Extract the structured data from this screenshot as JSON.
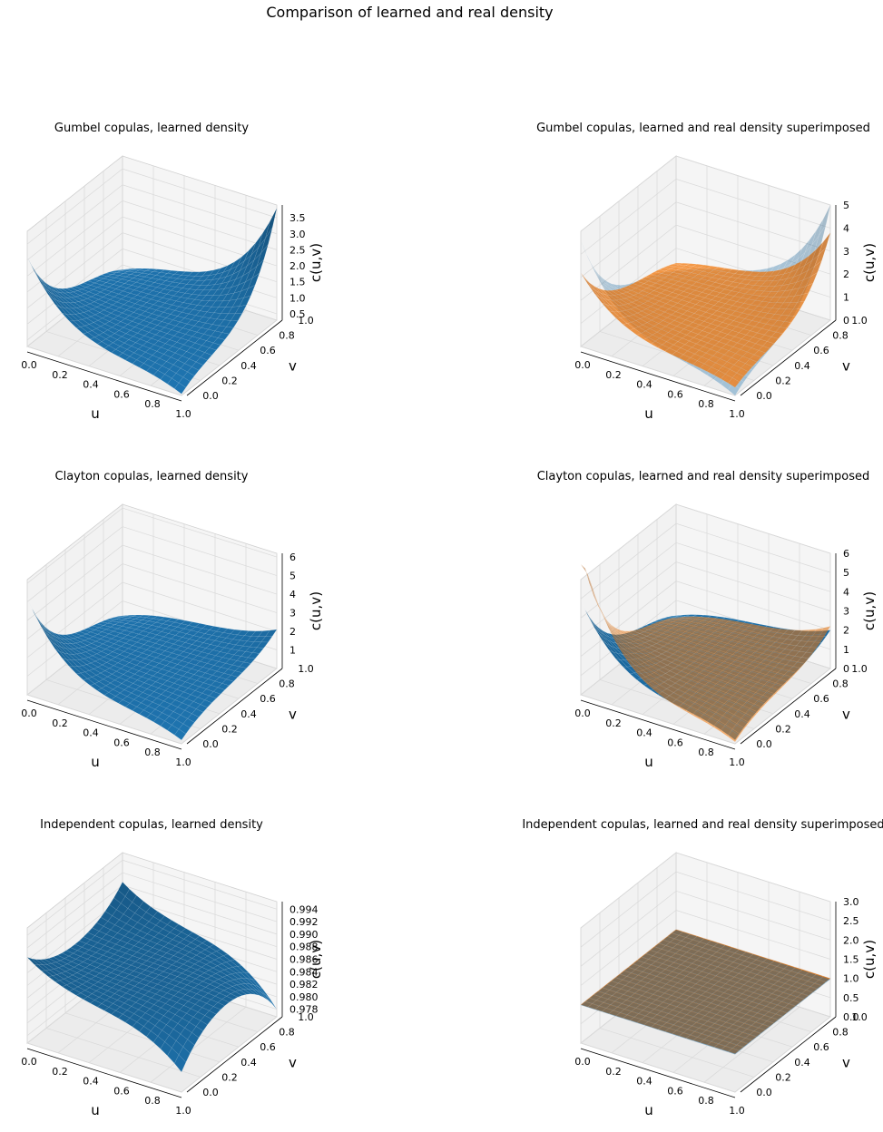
{
  "figure": {
    "suptitle": "Comparison of learned and real density",
    "colors": {
      "learned": "#1f77b4",
      "real": "#ff7f0e",
      "pane": "#f2f2f2",
      "grid": "#d9d9d9"
    }
  },
  "chart_data": [
    {
      "type": "surface3d",
      "title": "Gumbel copulas, learned density",
      "xlabel": "u",
      "ylabel": "v",
      "zlabel": "c(u,v)",
      "xticks": [
        "0.0",
        "0.2",
        "0.4",
        "0.6",
        "0.8",
        "1.0"
      ],
      "yticks": [
        "0.0",
        "0.2",
        "0.4",
        "0.6",
        "0.8",
        "1.0"
      ],
      "zticks": [
        "0.5",
        "1.0",
        "1.5",
        "2.0",
        "2.5",
        "3.0",
        "3.5"
      ],
      "zlim": [
        0.3,
        3.9
      ],
      "surfaces": [
        {
          "name": "learned",
          "color": "#1f77b4",
          "alpha": 1.0,
          "corners": {
            "u0v0": 3.1,
            "u1v0": 0.35,
            "u0v1": 0.35,
            "u1v1": 3.8
          },
          "center": 0.9
        }
      ]
    },
    {
      "type": "surface3d",
      "title": "Gumbel copulas, learned and real density superimposed",
      "xlabel": "u",
      "ylabel": "v",
      "zlabel": "c(u,v)",
      "xticks": [
        "0.0",
        "0.2",
        "0.4",
        "0.6",
        "0.8",
        "1.0"
      ],
      "yticks": [
        "0.0",
        "0.2",
        "0.4",
        "0.6",
        "0.8",
        "1.0"
      ],
      "zticks": [
        "0",
        "1",
        "2",
        "3",
        "4",
        "5"
      ],
      "zlim": [
        0,
        5
      ],
      "surfaces": [
        {
          "name": "real",
          "color": "#1f77b4",
          "alpha": 0.35,
          "corners": {
            "u0v0": 4.6,
            "u1v0": 0.0,
            "u0v1": 0.0,
            "u1v1": 5.0
          },
          "center": 0.9
        },
        {
          "name": "learned",
          "color": "#ff7f0e",
          "alpha": 0.75,
          "corners": {
            "u0v0": 3.2,
            "u1v0": 0.35,
            "u0v1": 0.35,
            "u1v1": 3.8
          },
          "center": 0.9
        }
      ]
    },
    {
      "type": "surface3d",
      "title": "Clayton copulas, learned density",
      "xlabel": "u",
      "ylabel": "v",
      "zlabel": "c(u,v)",
      "xticks": [
        "0.0",
        "0.2",
        "0.4",
        "0.6",
        "0.8",
        "1.0"
      ],
      "yticks": [
        "0.0",
        "0.2",
        "0.4",
        "0.6",
        "0.8",
        "1.0"
      ],
      "zticks": [
        "1",
        "2",
        "3",
        "4",
        "5",
        "6"
      ],
      "zlim": [
        0,
        6.2
      ],
      "surfaces": [
        {
          "name": "learned",
          "color": "#1f77b4",
          "alpha": 1.0,
          "corners": {
            "u0v0": 5.2,
            "u1v0": 0.2,
            "u0v1": 0.2,
            "u1v1": 2.1
          },
          "center": 1.1
        }
      ]
    },
    {
      "type": "surface3d",
      "title": "Clayton copulas, learned and real density superimposed",
      "xlabel": "u",
      "ylabel": "v",
      "zlabel": "c(u,v)",
      "xticks": [
        "0.0",
        "0.2",
        "0.4",
        "0.6",
        "0.8",
        "1.0"
      ],
      "yticks": [
        "0.0",
        "0.2",
        "0.4",
        "0.6",
        "0.8",
        "1.0"
      ],
      "zticks": [
        "0",
        "1",
        "2",
        "3",
        "4",
        "5",
        "6"
      ],
      "zlim": [
        0,
        6
      ],
      "surfaces": [
        {
          "name": "learned",
          "color": "#1f77b4",
          "alpha": 1.0,
          "corners": {
            "u0v0": 4.9,
            "u1v0": 0.2,
            "u0v1": 0.2,
            "u1v1": 2.0
          },
          "center": 1.1
        },
        {
          "name": "real",
          "color": "#ff7f0e",
          "alpha": 0.55,
          "corners": {
            "u0v0": 7.5,
            "u1v0": 0.1,
            "u0v1": 0.1,
            "u1v1": 2.2
          },
          "center": 1.0
        }
      ]
    },
    {
      "type": "surface3d",
      "title": "Independent copulas, learned density",
      "xlabel": "u",
      "ylabel": "v",
      "zlabel": "c(u,v)",
      "xticks": [
        "0.0",
        "0.2",
        "0.4",
        "0.6",
        "0.8",
        "1.0"
      ],
      "yticks": [
        "0.0",
        "0.2",
        "0.4",
        "0.6",
        "0.8",
        "1.0"
      ],
      "zticks": [
        "0.978",
        "0.980",
        "0.982",
        "0.984",
        "0.986",
        "0.988",
        "0.990",
        "0.992",
        "0.994"
      ],
      "zlim": [
        0.9768,
        0.9952
      ],
      "surfaces": [
        {
          "name": "learned",
          "color": "#1f77b4",
          "alpha": 1.0,
          "corners": {
            "u0v0": 0.9905,
            "u1v0": 0.98,
            "u0v1": 0.9905,
            "u1v1": 0.978
          },
          "center": 0.986
        }
      ]
    },
    {
      "type": "surface3d",
      "title": "Independent copulas, learned and real density superimposed",
      "xlabel": "u",
      "ylabel": "v",
      "zlabel": "c(u,v)",
      "xticks": [
        "0.0",
        "0.2",
        "0.4",
        "0.6",
        "0.8",
        "1.0"
      ],
      "yticks": [
        "0.0",
        "0.2",
        "0.4",
        "0.6",
        "0.8",
        "1.0"
      ],
      "zticks": [
        "0.0",
        "0.5",
        "1.0",
        "1.5",
        "2.0",
        "2.5",
        "3.0"
      ],
      "zlim": [
        0,
        3
      ],
      "surfaces": [
        {
          "name": "real",
          "color": "#ff7f0e",
          "alpha": 1.0,
          "corners": {
            "u0v0": 1.0,
            "u1v0": 1.0,
            "u0v1": 1.0,
            "u1v1": 1.0
          },
          "center": 1.0
        },
        {
          "name": "learned",
          "color": "#1f77b4",
          "alpha": 0.5,
          "corners": {
            "u0v0": 0.99,
            "u1v0": 0.98,
            "u0v1": 0.99,
            "u1v1": 0.978
          },
          "center": 0.986
        }
      ]
    }
  ]
}
